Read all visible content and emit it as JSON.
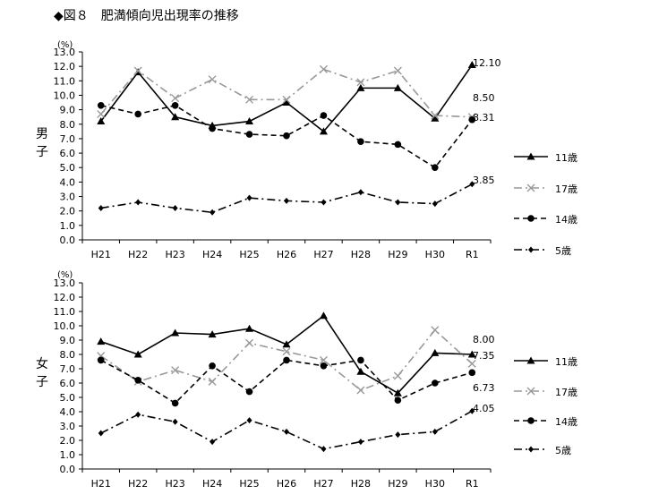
{
  "title": "◆図８　肥満傾向児出現率の推移",
  "chart_data": [
    {
      "type": "line",
      "panel_label": "男子",
      "unit_label": "(%)",
      "categories": [
        "H21",
        "H22",
        "H23",
        "H24",
        "H25",
        "H26",
        "H27",
        "H28",
        "H29",
        "H30",
        "R1"
      ],
      "ylim": [
        0,
        13
      ],
      "yticks": [
        "0.0",
        "1.0",
        "2.0",
        "3.0",
        "4.0",
        "5.0",
        "6.0",
        "7.0",
        "8.0",
        "9.0",
        "10.0",
        "11.0",
        "12.0",
        "13.0"
      ],
      "grid": false,
      "legend_position": "right",
      "series": [
        {
          "name": "11歳",
          "values": [
            8.2,
            11.6,
            8.5,
            7.9,
            8.2,
            9.5,
            7.5,
            10.5,
            10.5,
            8.4,
            12.1
          ],
          "color": "#000000",
          "style": "solid",
          "marker": "triangle",
          "end_label": "12.10"
        },
        {
          "name": "17歳",
          "values": [
            8.7,
            11.7,
            9.8,
            11.1,
            9.7,
            9.7,
            11.8,
            10.9,
            11.7,
            8.6,
            8.5
          ],
          "color": "#999999",
          "style": "dashdot",
          "marker": "x",
          "end_label": "8.50"
        },
        {
          "name": "14歳",
          "values": [
            9.3,
            8.7,
            9.3,
            7.7,
            7.3,
            7.2,
            8.6,
            6.8,
            6.6,
            5.0,
            8.31
          ],
          "color": "#000000",
          "style": "dashed",
          "marker": "circle",
          "end_label": "8.31"
        },
        {
          "name": "5歳",
          "values": [
            2.2,
            2.6,
            2.2,
            1.9,
            2.9,
            2.7,
            2.6,
            3.3,
            2.6,
            2.5,
            3.85
          ],
          "color": "#000000",
          "style": "dashdot",
          "marker": "diamond",
          "end_label": "3.85"
        }
      ]
    },
    {
      "type": "line",
      "panel_label": "女子",
      "unit_label": "(%)",
      "categories": [
        "H21",
        "H22",
        "H23",
        "H24",
        "H25",
        "H26",
        "H27",
        "H28",
        "H29",
        "H30",
        "R1"
      ],
      "ylim": [
        0,
        13
      ],
      "yticks": [
        "0.0",
        "1.0",
        "2.0",
        "3.0",
        "4.0",
        "5.0",
        "6.0",
        "7.0",
        "8.0",
        "9.0",
        "10.0",
        "11.0",
        "12.0",
        "13.0"
      ],
      "grid": false,
      "legend_position": "right",
      "series": [
        {
          "name": "11歳",
          "values": [
            8.9,
            8.0,
            9.5,
            9.4,
            9.8,
            8.7,
            10.7,
            6.8,
            5.3,
            8.1,
            8.0
          ],
          "color": "#000000",
          "style": "solid",
          "marker": "triangle",
          "end_label": "8.00"
        },
        {
          "name": "17歳",
          "values": [
            7.9,
            6.1,
            6.9,
            6.1,
            8.8,
            8.2,
            7.6,
            5.5,
            6.5,
            9.7,
            7.35
          ],
          "color": "#999999",
          "style": "dashdot",
          "marker": "x",
          "end_label": "7.35"
        },
        {
          "name": "14歳",
          "values": [
            7.6,
            6.2,
            4.6,
            7.2,
            5.4,
            7.6,
            7.2,
            7.6,
            4.8,
            6.0,
            6.73
          ],
          "color": "#000000",
          "style": "dashed",
          "marker": "circle",
          "end_label": "6.73"
        },
        {
          "name": "5歳",
          "values": [
            2.5,
            3.8,
            3.3,
            1.9,
            3.4,
            2.6,
            1.4,
            1.9,
            2.4,
            2.6,
            4.05
          ],
          "color": "#000000",
          "style": "dashdot",
          "marker": "diamond",
          "end_label": "4.05"
        }
      ]
    }
  ]
}
